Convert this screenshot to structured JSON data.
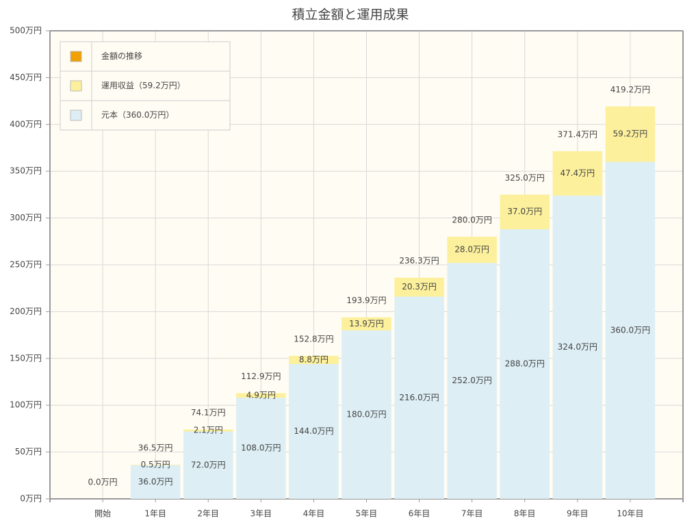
{
  "chart_data": {
    "type": "stacked_bar",
    "title": "積立金額と運用成果",
    "categories": [
      "開始",
      "1年目",
      "2年目",
      "3年目",
      "4年目",
      "5年目",
      "6年目",
      "7年目",
      "8年目",
      "9年目",
      "10年目"
    ],
    "series": [
      {
        "name": "金額の推移",
        "color": "#f0a000",
        "kind": "total",
        "values": [
          0,
          36.5,
          74.1,
          112.9,
          152.8,
          193.9,
          236.3,
          280.0,
          325.0,
          371.4,
          419.2
        ],
        "value_labels": [
          "0.0万円",
          "36.5万円",
          "74.1万円",
          "112.9万円",
          "152.8万円",
          "193.9万円",
          "236.3万円",
          "280.0万円",
          "325.0万円",
          "371.4万円",
          "419.2万円"
        ]
      },
      {
        "name": "運用収益（59.2万円）",
        "color": "#fcf09c",
        "kind": "segment",
        "values": [
          0,
          0.5,
          2.1,
          4.9,
          8.8,
          13.9,
          20.3,
          28.0,
          37.0,
          47.4,
          59.2
        ],
        "value_labels": [
          null,
          "0.5万円",
          "2.1万円",
          "4.9万円",
          "8.8万円",
          "13.9万円",
          "20.3万円",
          "28.0万円",
          "37.0万円",
          "47.4万円",
          "59.2万円"
        ]
      },
      {
        "name": "元本（360.0万円）",
        "color": "#ddeef5",
        "kind": "segment",
        "values": [
          0,
          36,
          72,
          108,
          144,
          180,
          216,
          252,
          288,
          324,
          360
        ],
        "value_labels": [
          null,
          "36.0万円",
          "72.0万円",
          "108.0万円",
          "144.0万円",
          "180.0万円",
          "216.0万円",
          "252.0万円",
          "288.0万円",
          "324.0万円",
          "360.0万円"
        ]
      }
    ],
    "ylim": [
      0,
      500
    ],
    "yticks": [
      {
        "value": 0,
        "label": "0万円"
      },
      {
        "value": 50,
        "label": "50万円"
      },
      {
        "value": 100,
        "label": "100万円"
      },
      {
        "value": 150,
        "label": "150万円"
      },
      {
        "value": 200,
        "label": "200万円"
      },
      {
        "value": 250,
        "label": "250万円"
      },
      {
        "value": 300,
        "label": "300万円"
      },
      {
        "value": 350,
        "label": "350万円"
      },
      {
        "value": 400,
        "label": "400万円"
      },
      {
        "value": 450,
        "label": "450万円"
      },
      {
        "value": 500,
        "label": "500万円"
      }
    ],
    "grid": true,
    "legend": "top-left"
  }
}
